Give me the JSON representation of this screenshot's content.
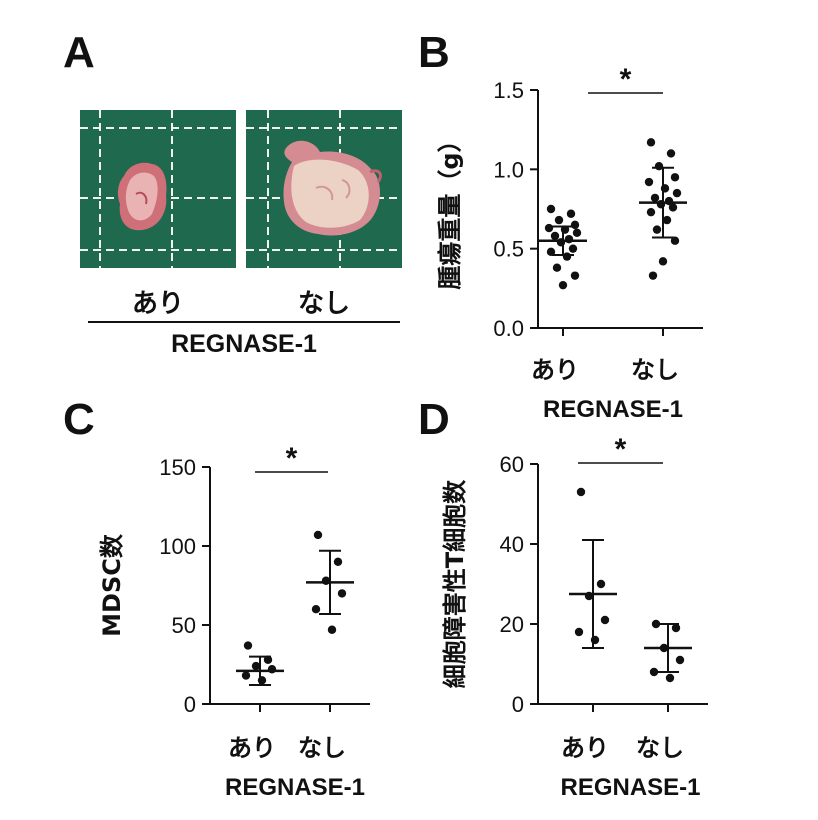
{
  "panelA": {
    "letter": "A",
    "photo_labels": [
      "あり",
      "なし"
    ],
    "group_label": "REGNASE-1",
    "grid_color": "#f2f2f2",
    "background_color": "#1f6a4e",
    "tumor_color": "#e8b9b3"
  },
  "chart_data": [
    {
      "panel": "B",
      "type": "scatter",
      "ylabel": "腫瘍重量（g）",
      "xlabel": "REGNASE-1",
      "categories": [
        "あり",
        "なし"
      ],
      "ylim": [
        0,
        1.5
      ],
      "yticks": [
        0.0,
        0.5,
        1.0,
        1.5
      ],
      "ytick_labels": [
        "0.0",
        "0.5",
        "1.0",
        "1.5"
      ],
      "significance": "*",
      "groups": [
        {
          "category": "あり",
          "mean": 0.55,
          "sd_low": 0.46,
          "sd_high": 0.64,
          "points": [
            0.75,
            0.72,
            0.68,
            0.65,
            0.63,
            0.62,
            0.6,
            0.58,
            0.56,
            0.54,
            0.5,
            0.48,
            0.45,
            0.38,
            0.33,
            0.27
          ]
        },
        {
          "category": "なし",
          "mean": 0.79,
          "sd_low": 0.57,
          "sd_high": 1.01,
          "points": [
            1.17,
            1.1,
            1.02,
            0.95,
            0.92,
            0.88,
            0.85,
            0.82,
            0.8,
            0.78,
            0.76,
            0.73,
            0.68,
            0.62,
            0.55,
            0.42,
            0.33
          ]
        }
      ]
    },
    {
      "panel": "C",
      "type": "scatter",
      "ylabel": "MDSC数",
      "xlabel": "REGNASE-1",
      "categories": [
        "あり",
        "なし"
      ],
      "ylim": [
        0,
        150
      ],
      "yticks": [
        0,
        50,
        100,
        150
      ],
      "ytick_labels": [
        "0",
        "50",
        "100",
        "150"
      ],
      "significance": "*",
      "groups": [
        {
          "category": "あり",
          "mean": 21,
          "sd_low": 12,
          "sd_high": 30,
          "points": [
            37,
            28,
            24,
            22,
            18,
            15
          ]
        },
        {
          "category": "なし",
          "mean": 77,
          "sd_low": 57,
          "sd_high": 97,
          "points": [
            107,
            90,
            78,
            70,
            60,
            47
          ]
        }
      ]
    },
    {
      "panel": "D",
      "type": "scatter",
      "ylabel": "細胞障害性T細胞数",
      "xlabel": "REGNASE-1",
      "categories": [
        "あり",
        "なし"
      ],
      "ylim": [
        0,
        60
      ],
      "yticks": [
        0,
        20,
        40,
        60
      ],
      "ytick_labels": [
        "0",
        "20",
        "40",
        "60"
      ],
      "significance": "*",
      "groups": [
        {
          "category": "あり",
          "mean": 27.5,
          "sd_low": 14,
          "sd_high": 41,
          "points": [
            53,
            30,
            27,
            21,
            18,
            16
          ]
        },
        {
          "category": "なし",
          "mean": 14,
          "sd_low": 8,
          "sd_high": 20,
          "points": [
            20,
            19,
            14,
            11,
            8,
            6.5
          ]
        }
      ]
    }
  ]
}
